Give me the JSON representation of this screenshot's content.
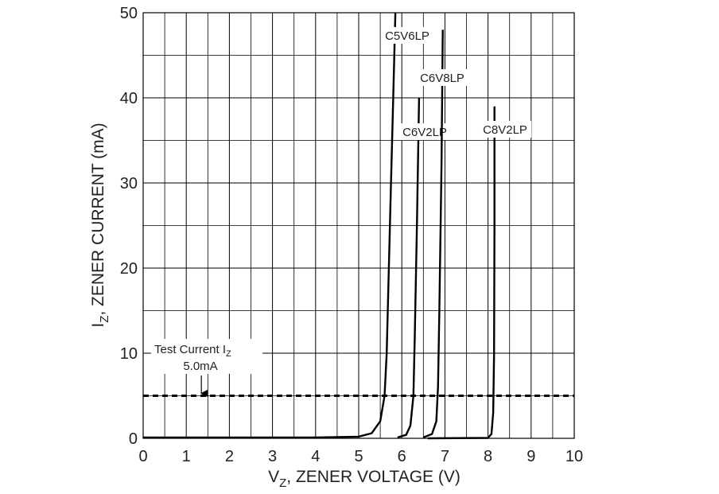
{
  "chart_data": {
    "type": "line",
    "xlabel": {
      "main": "V",
      "sub": "Z",
      "rest": ", ZENER VOLTAGE (V)"
    },
    "ylabel": {
      "main": "I",
      "sub": "Z",
      "rest": ", ZENER CURRENT (mA)"
    },
    "xlim": [
      0,
      10
    ],
    "ylim": [
      0,
      50
    ],
    "xticks": [
      0,
      1,
      2,
      3,
      4,
      5,
      6,
      7,
      8,
      9,
      10
    ],
    "yticks": [
      0,
      10,
      20,
      30,
      40,
      50
    ],
    "x_minor_grid": [
      0.5,
      1.5,
      2.5,
      3.5,
      4.5,
      5.5,
      6.5,
      7.5,
      8.5,
      9.5
    ],
    "y_minor_grid": [
      5,
      15,
      25,
      35,
      45
    ],
    "grid": true,
    "series": [
      {
        "name": "C5V6LP",
        "color": "#000000",
        "x": [
          0,
          4,
          5.0,
          5.3,
          5.5,
          5.6,
          5.65,
          5.7,
          5.75,
          5.8,
          5.85
        ],
        "values": [
          0.1,
          0.1,
          0.2,
          0.6,
          2,
          5,
          10,
          20,
          30,
          40,
          50
        ]
      },
      {
        "name": "C6V2LP",
        "color": "#000000",
        "x": [
          5.9,
          6.1,
          6.2,
          6.27,
          6.3,
          6.35,
          6.4
        ],
        "values": [
          0.1,
          0.4,
          1.5,
          5,
          12,
          25,
          40
        ]
      },
      {
        "name": "C6V8LP",
        "color": "#000000",
        "x": [
          6.5,
          6.7,
          6.8,
          6.84,
          6.87,
          6.92,
          6.95
        ],
        "values": [
          0.1,
          0.5,
          2,
          6,
          15,
          32,
          48
        ]
      },
      {
        "name": "C8V2LP",
        "color": "#000000",
        "x": [
          6.6,
          8.0,
          8.08,
          8.12,
          8.14,
          8.15,
          8.15
        ],
        "values": [
          0,
          0.05,
          0.5,
          3,
          10,
          25,
          39
        ]
      }
    ],
    "annotation": {
      "text": "Test Current I",
      "sub": "Z",
      "value_text": "5.0mA",
      "y": 5,
      "x": 1.35
    }
  }
}
